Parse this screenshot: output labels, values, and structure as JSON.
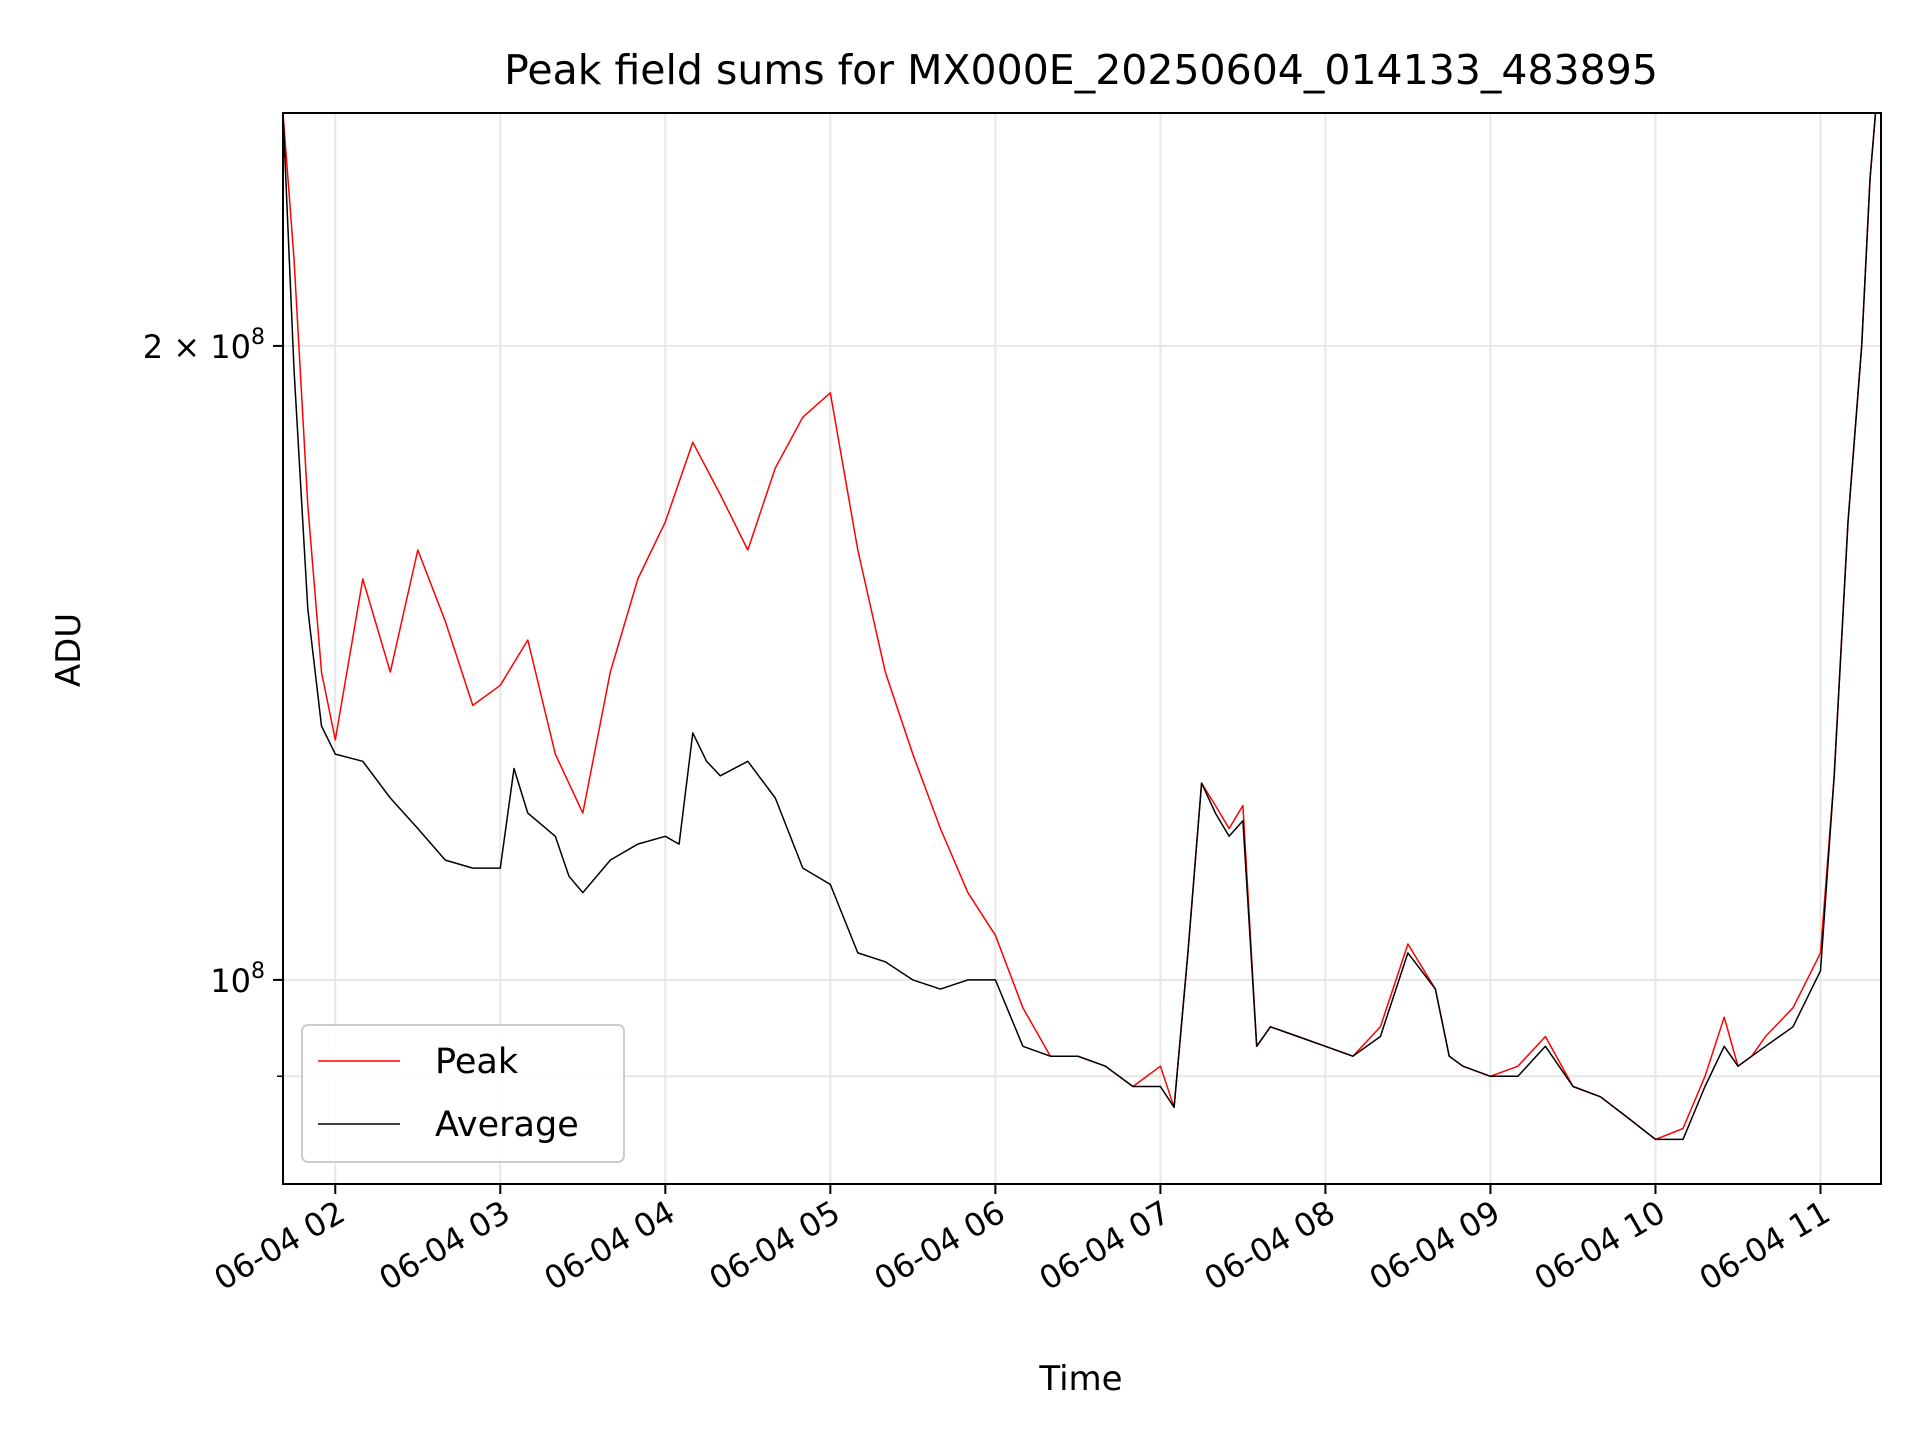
{
  "chart_data": {
    "type": "line",
    "title": "Peak field sums for MX000E_20250604_014133_483895",
    "xlabel": "Time",
    "ylabel": "ADU",
    "y_scale": "log",
    "xlim": [
      "2025-06-04T01:41",
      "2025-06-04T11:22"
    ],
    "ylim": [
      80000000,
      258000000
    ],
    "x_ticks": [
      {
        "value": "2025-06-04T02:00",
        "label": "06-04 02"
      },
      {
        "value": "2025-06-04T03:00",
        "label": "06-04 03"
      },
      {
        "value": "2025-06-04T04:00",
        "label": "06-04 04"
      },
      {
        "value": "2025-06-04T05:00",
        "label": "06-04 05"
      },
      {
        "value": "2025-06-04T06:00",
        "label": "06-04 06"
      },
      {
        "value": "2025-06-04T07:00",
        "label": "06-04 07"
      },
      {
        "value": "2025-06-04T08:00",
        "label": "06-04 08"
      },
      {
        "value": "2025-06-04T09:00",
        "label": "06-04 09"
      },
      {
        "value": "2025-06-04T10:00",
        "label": "06-04 10"
      },
      {
        "value": "2025-06-04T11:00",
        "label": "06-04 11"
      }
    ],
    "y_major_ticks": [
      {
        "value": 100000000,
        "base": "10",
        "exp": "8",
        "coef": ""
      },
      {
        "value": 200000000,
        "base": "10",
        "exp": "8",
        "coef": "2 × "
      }
    ],
    "y_minor_ticks": [
      90000000
    ],
    "grid": true,
    "legend": {
      "position": "lower-left"
    },
    "series": [
      {
        "name": "Peak",
        "color": "#ff0000",
        "x": [
          "2025-06-04T01:41",
          "2025-06-04T01:45",
          "2025-06-04T01:50",
          "2025-06-04T01:55",
          "2025-06-04T02:00",
          "2025-06-04T02:10",
          "2025-06-04T02:20",
          "2025-06-04T02:30",
          "2025-06-04T02:40",
          "2025-06-04T02:50",
          "2025-06-04T03:00",
          "2025-06-04T03:10",
          "2025-06-04T03:20",
          "2025-06-04T03:30",
          "2025-06-04T03:40",
          "2025-06-04T03:50",
          "2025-06-04T04:00",
          "2025-06-04T04:10",
          "2025-06-04T04:20",
          "2025-06-04T04:30",
          "2025-06-04T04:40",
          "2025-06-04T04:50",
          "2025-06-04T05:00",
          "2025-06-04T05:10",
          "2025-06-04T05:20",
          "2025-06-04T05:30",
          "2025-06-04T05:40",
          "2025-06-04T05:50",
          "2025-06-04T06:00",
          "2025-06-04T06:10",
          "2025-06-04T06:20",
          "2025-06-04T06:30",
          "2025-06-04T06:40",
          "2025-06-04T06:50",
          "2025-06-04T07:00",
          "2025-06-04T07:05",
          "2025-06-04T07:10",
          "2025-06-04T07:15",
          "2025-06-04T07:20",
          "2025-06-04T07:25",
          "2025-06-04T07:30",
          "2025-06-04T07:35",
          "2025-06-04T07:40",
          "2025-06-04T07:50",
          "2025-06-04T08:00",
          "2025-06-04T08:10",
          "2025-06-04T08:20",
          "2025-06-04T08:30",
          "2025-06-04T08:40",
          "2025-06-04T08:45",
          "2025-06-04T08:50",
          "2025-06-04T09:00",
          "2025-06-04T09:10",
          "2025-06-04T09:20",
          "2025-06-04T09:30",
          "2025-06-04T09:40",
          "2025-06-04T09:50",
          "2025-06-04T10:00",
          "2025-06-04T10:10",
          "2025-06-04T10:18",
          "2025-06-04T10:25",
          "2025-06-04T10:30",
          "2025-06-04T10:35",
          "2025-06-04T10:40",
          "2025-06-04T10:50",
          "2025-06-04T11:00",
          "2025-06-04T11:05",
          "2025-06-04T11:10",
          "2025-06-04T11:15",
          "2025-06-04T11:18",
          "2025-06-04T11:20"
        ],
        "values": [
          258000000,
          220000000,
          168000000,
          140000000,
          130000000,
          155000000,
          140000000,
          160000000,
          148000000,
          135000000,
          138000000,
          145000000,
          128000000,
          120000000,
          140000000,
          155000000,
          165000000,
          180000000,
          170000000,
          160000000,
          175000000,
          185000000,
          190000000,
          160000000,
          140000000,
          128000000,
          118000000,
          110000000,
          105000000,
          97000000,
          92000000,
          92000000,
          91000000,
          89000000,
          91000000,
          87000000,
          103000000,
          124000000,
          121000000,
          118000000,
          121000000,
          93000000,
          95000000,
          94000000,
          93000000,
          92000000,
          95000000,
          104000000,
          99000000,
          92000000,
          91000000,
          90000000,
          91000000,
          94000000,
          89000000,
          88000000,
          86000000,
          84000000,
          85000000,
          90000000,
          96000000,
          91000000,
          92000000,
          94000000,
          97000000,
          103000000,
          125000000,
          165000000,
          200000000,
          240000000,
          258000000
        ]
      },
      {
        "name": "Average",
        "color": "#000000",
        "x": [
          "2025-06-04T01:41",
          "2025-06-04T01:45",
          "2025-06-04T01:50",
          "2025-06-04T01:55",
          "2025-06-04T02:00",
          "2025-06-04T02:10",
          "2025-06-04T02:20",
          "2025-06-04T02:30",
          "2025-06-04T02:40",
          "2025-06-04T02:50",
          "2025-06-04T03:00",
          "2025-06-04T03:05",
          "2025-06-04T03:10",
          "2025-06-04T03:20",
          "2025-06-04T03:25",
          "2025-06-04T03:30",
          "2025-06-04T03:40",
          "2025-06-04T03:50",
          "2025-06-04T04:00",
          "2025-06-04T04:05",
          "2025-06-04T04:10",
          "2025-06-04T04:15",
          "2025-06-04T04:20",
          "2025-06-04T04:30",
          "2025-06-04T04:40",
          "2025-06-04T04:50",
          "2025-06-04T05:00",
          "2025-06-04T05:10",
          "2025-06-04T05:20",
          "2025-06-04T05:30",
          "2025-06-04T05:40",
          "2025-06-04T05:50",
          "2025-06-04T06:00",
          "2025-06-04T06:10",
          "2025-06-04T06:20",
          "2025-06-04T06:30",
          "2025-06-04T06:40",
          "2025-06-04T06:50",
          "2025-06-04T07:00",
          "2025-06-04T07:05",
          "2025-06-04T07:10",
          "2025-06-04T07:15",
          "2025-06-04T07:20",
          "2025-06-04T07:25",
          "2025-06-04T07:30",
          "2025-06-04T07:35",
          "2025-06-04T07:40",
          "2025-06-04T07:50",
          "2025-06-04T08:00",
          "2025-06-04T08:10",
          "2025-06-04T08:20",
          "2025-06-04T08:30",
          "2025-06-04T08:40",
          "2025-06-04T08:45",
          "2025-06-04T08:50",
          "2025-06-04T09:00",
          "2025-06-04T09:10",
          "2025-06-04T09:20",
          "2025-06-04T09:30",
          "2025-06-04T09:40",
          "2025-06-04T09:50",
          "2025-06-04T10:00",
          "2025-06-04T10:10",
          "2025-06-04T10:18",
          "2025-06-04T10:25",
          "2025-06-04T10:30",
          "2025-06-04T10:35",
          "2025-06-04T10:40",
          "2025-06-04T10:50",
          "2025-06-04T11:00",
          "2025-06-04T11:05",
          "2025-06-04T11:10",
          "2025-06-04T11:15",
          "2025-06-04T11:18",
          "2025-06-04T11:20"
        ],
        "values": [
          258000000,
          195000000,
          150000000,
          132000000,
          128000000,
          127000000,
          122000000,
          118000000,
          114000000,
          113000000,
          113000000,
          126000000,
          120000000,
          117000000,
          112000000,
          110000000,
          114000000,
          116000000,
          117000000,
          116000000,
          131000000,
          127000000,
          125000000,
          127000000,
          122000000,
          113000000,
          111000000,
          103000000,
          102000000,
          100000000,
          99000000,
          100000000,
          100000000,
          93000000,
          92000000,
          92000000,
          91000000,
          89000000,
          89000000,
          87000000,
          103000000,
          124000000,
          120000000,
          117000000,
          119000000,
          93000000,
          95000000,
          94000000,
          93000000,
          92000000,
          94000000,
          103000000,
          99000000,
          92000000,
          91000000,
          90000000,
          90000000,
          93000000,
          89000000,
          88000000,
          86000000,
          84000000,
          84000000,
          89000000,
          93000000,
          91000000,
          92000000,
          93000000,
          95000000,
          101000000,
          125000000,
          165000000,
          200000000,
          240000000,
          258000000
        ]
      }
    ]
  }
}
